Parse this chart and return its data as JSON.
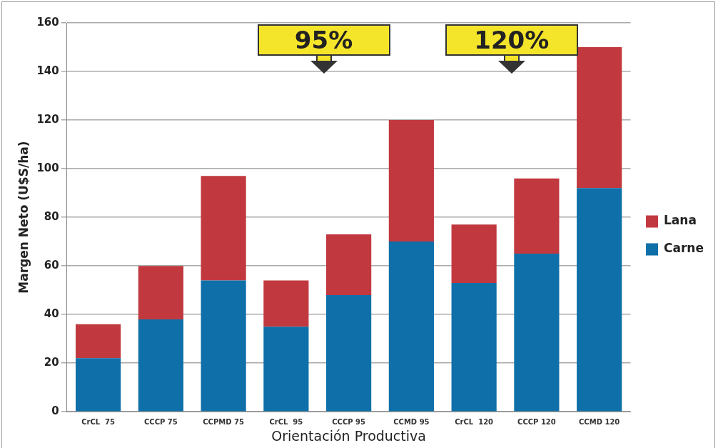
{
  "chart_data": {
    "type": "bar",
    "stacked": true,
    "xlabel": "Orientación Productiva",
    "ylabel": "Margen Neto (U$S/ha)",
    "categories": [
      "CrCL  75",
      "CCCP 75",
      "CCPMD 75",
      "CrCL  95",
      "CCCP 95",
      "CCMD 95",
      "CrCL  120",
      "CCCP 120",
      "CCMD 120"
    ],
    "series": [
      {
        "name": "Carne",
        "color": "#0f6fa8",
        "values": [
          22,
          38,
          54,
          35,
          48,
          70,
          53,
          65,
          92
        ]
      },
      {
        "name": "Lana",
        "color": "#c1393f",
        "values": [
          14,
          22,
          43,
          19,
          25,
          50,
          24,
          31,
          58
        ]
      }
    ],
    "ylim": [
      0,
      160
    ],
    "yticks": [
      0,
      20,
      40,
      60,
      80,
      100,
      120,
      140,
      160
    ],
    "grid": "y",
    "legend": "right",
    "annotations": [
      "95%",
      "120%"
    ]
  }
}
